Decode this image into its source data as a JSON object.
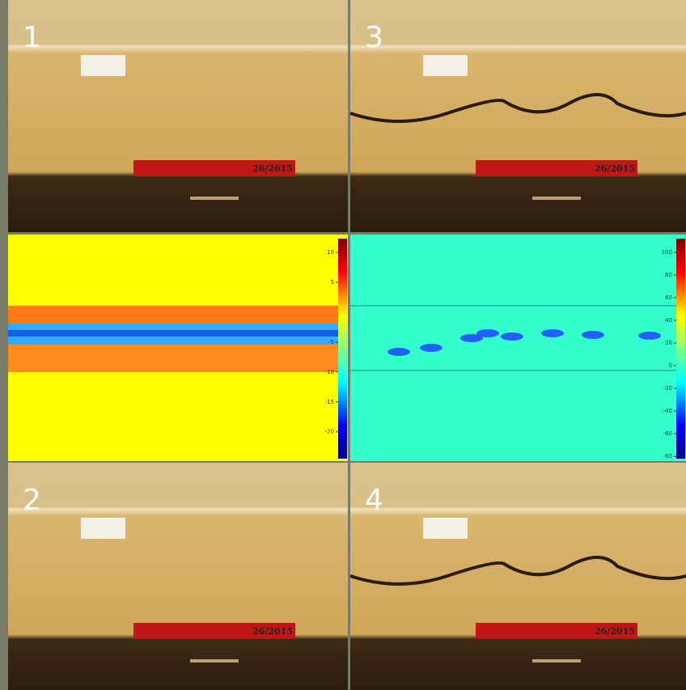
{
  "panels": [
    {
      "label": "1",
      "ruler_text": "26/2015"
    },
    {
      "label": "3",
      "ruler_text": "26/2015"
    },
    {
      "label": "2",
      "ruler_text": "26/2015"
    },
    {
      "label": "4",
      "ruler_text": "26/2015"
    }
  ],
  "maps": [
    {
      "colorbar": {
        "lim": [
          -24.5,
          12.3
        ],
        "ticks": [
          10,
          5,
          -5,
          -10,
          -15,
          -20
        ]
      }
    },
    {
      "colorbar": {
        "lim": [
          -82,
          112
        ],
        "ticks": [
          100,
          80,
          60,
          40,
          20,
          0,
          -20,
          -40,
          -60,
          -80
        ]
      }
    }
  ]
}
